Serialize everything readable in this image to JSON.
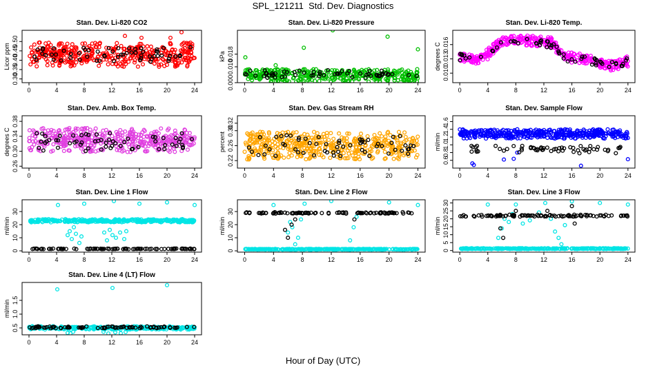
{
  "figure": {
    "title": "SPL_121211  Std. Dev. Diagnostics",
    "xlabel": "Hour of Day (UTC)"
  },
  "chart_data": [
    {
      "type": "scatter",
      "title": "Stan. Dev. Li-820 CO2",
      "ylabel": "Licor ppm",
      "xlim": [
        -1,
        25
      ],
      "ylim": [
        0.28,
        0.56
      ],
      "xticks": [
        0,
        4,
        8,
        12,
        16,
        20,
        24
      ],
      "yticks": [
        0.3,
        0.35,
        0.4,
        0.45,
        0.5
      ],
      "ytick_labels": [
        "0.30",
        "0.35",
        "0.40",
        "0.45",
        "0.50"
      ],
      "colors": {
        "main": "#ff0000",
        "avg": "#000000"
      },
      "series": [
        {
          "name": "main",
          "kind": "band",
          "n": 430,
          "center": 0.43,
          "spread": 0.065,
          "outliers": [
            [
              16.3,
              0.52
            ],
            [
              20.5,
              0.52
            ],
            [
              22.1,
              0.55
            ],
            [
              13.9,
              0.53
            ]
          ]
        },
        {
          "name": "avg",
          "kind": "band",
          "n": 60,
          "center": 0.43,
          "spread": 0.04
        }
      ]
    },
    {
      "type": "scatter",
      "title": "Stan. Dev. Li-820 Pressure",
      "ylabel": "kPa",
      "xlim": [
        -1,
        25
      ],
      "ylim": [
        0.0,
        0.033
      ],
      "xticks": [
        0,
        4,
        8,
        12,
        16,
        20,
        24
      ],
      "yticks": [
        0.0,
        0.01,
        0.018
      ],
      "ytick_labels": [
        "0.000",
        "0.010",
        "0.018"
      ],
      "colors": {
        "main": "#00c000",
        "avg": "#000000"
      },
      "series": [
        {
          "name": "main",
          "kind": "band",
          "n": 380,
          "center": 0.0045,
          "spread": 0.004,
          "outliers": [
            [
              0.1,
              0.016
            ],
            [
              4.3,
              0.011
            ],
            [
              8.2,
              0.022
            ],
            [
              12.2,
              0.033
            ],
            [
              19.8,
              0.029
            ],
            [
              24.0,
              0.021
            ]
          ]
        },
        {
          "name": "avg",
          "kind": "band",
          "n": 60,
          "center": 0.0055,
          "spread": 0.0025
        }
      ]
    },
    {
      "type": "scatter",
      "title": "Stan. Dev. Li-820 Temp.",
      "ylabel": "degrees C",
      "xlim": [
        -1,
        25
      ],
      "ylim": [
        0.008,
        0.019
      ],
      "xticks": [
        0,
        4,
        8,
        12,
        16,
        20,
        24
      ],
      "yticks": [
        0.01,
        0.013,
        0.016
      ],
      "ytick_labels": [
        "0.010",
        "0.013",
        "0.016"
      ],
      "colors": {
        "main": "#ff00ff",
        "avg": "#000000"
      },
      "series": [
        {
          "name": "main",
          "kind": "profile",
          "n": 420,
          "spread": 0.0011,
          "profile": [
            [
              0,
              0.0135
            ],
            [
              3,
              0.0128
            ],
            [
              6,
              0.0165
            ],
            [
              9,
              0.017
            ],
            [
              13,
              0.0165
            ],
            [
              15,
              0.0135
            ],
            [
              18,
              0.0128
            ],
            [
              22,
              0.0115
            ],
            [
              24,
              0.0125
            ]
          ]
        },
        {
          "name": "avg",
          "kind": "profile",
          "n": 60,
          "spread": 0.0008,
          "profile": [
            [
              0,
              0.0135
            ],
            [
              3,
              0.013
            ],
            [
              6,
              0.016
            ],
            [
              9,
              0.0165
            ],
            [
              13,
              0.016
            ],
            [
              15,
              0.0133
            ],
            [
              18,
              0.0127
            ],
            [
              22,
              0.0118
            ],
            [
              24,
              0.0125
            ]
          ]
        }
      ]
    },
    {
      "type": "scatter",
      "title": "Stan. Dev. Amb. Box Temp.",
      "ylabel": "degrees C",
      "xlim": [
        -1,
        25
      ],
      "ylim": [
        0.255,
        0.395
      ],
      "xticks": [
        0,
        4,
        8,
        12,
        16,
        20,
        24
      ],
      "yticks": [
        0.26,
        0.3,
        0.34,
        0.38
      ],
      "ytick_labels": [
        "0.26",
        "0.30",
        "0.34",
        "0.38"
      ],
      "colors": {
        "main": "#e040e0",
        "avg": "#000000"
      },
      "series": [
        {
          "name": "main",
          "kind": "band",
          "n": 430,
          "center": 0.33,
          "spread": 0.032
        },
        {
          "name": "avg",
          "kind": "band",
          "n": 60,
          "center": 0.325,
          "spread": 0.025
        }
      ]
    },
    {
      "type": "scatter",
      "title": "Stan. Dev. Gas Stream RH",
      "ylabel": "percent",
      "xlim": [
        -1,
        25
      ],
      "ylim": [
        0.2,
        0.34
      ],
      "xticks": [
        0,
        4,
        8,
        12,
        16,
        20,
        24
      ],
      "yticks": [
        0.22,
        0.26,
        0.3,
        0.32
      ],
      "ytick_labels": [
        "0.22",
        "0.26",
        "0.30",
        "0.32"
      ],
      "colors": {
        "main": "#ffa500",
        "avg": "#000000"
      },
      "series": [
        {
          "name": "main",
          "kind": "band",
          "n": 460,
          "center": 0.26,
          "spread": 0.037
        },
        {
          "name": "avg",
          "kind": "band",
          "n": 60,
          "center": 0.26,
          "spread": 0.028
        }
      ]
    },
    {
      "type": "scatter",
      "title": "Stan. Dev. Sample Flow",
      "ylabel": "ml/min",
      "xlim": [
        -1,
        25
      ],
      "ylim": [
        0.4,
        1.75
      ],
      "xticks": [
        0,
        4,
        8,
        12,
        16,
        20,
        24
      ],
      "yticks": [
        0.6,
        0.8,
        1.0,
        1.2,
        1.4,
        1.6
      ],
      "ytick_labels": [
        "0.6",
        "0.8",
        "1.0",
        "1.2",
        "1.4",
        "1.6"
      ],
      "colors": {
        "main": "#0000ff",
        "avg": "#000000"
      },
      "series": [
        {
          "name": "main",
          "kind": "band",
          "n": 430,
          "center": 1.28,
          "spread": 0.12,
          "outliers": [
            [
              1.8,
              0.52
            ],
            [
              2.0,
              0.48
            ],
            [
              6.3,
              0.62
            ],
            [
              7.7,
              0.64
            ],
            [
              8.2,
              0.8
            ],
            [
              17.3,
              0.46
            ],
            [
              24.0,
              0.63
            ]
          ]
        },
        {
          "name": "avg",
          "kind": "band",
          "n": 60,
          "center": 0.88,
          "spread": 0.1
        }
      ]
    },
    {
      "type": "scatter",
      "title": "Stan. Dev. Line 1 Flow",
      "ylabel": "ml/min",
      "xlim": [
        -1,
        25
      ],
      "ylim": [
        -1,
        39
      ],
      "xticks": [
        0,
        4,
        8,
        12,
        16,
        20,
        24
      ],
      "yticks": [
        0,
        10,
        20,
        30
      ],
      "ytick_labels": [
        "0",
        "10",
        "20",
        "30"
      ],
      "colors": {
        "main": "#00e5e5",
        "avg": "#000000"
      },
      "series": [
        {
          "name": "main",
          "kind": "band",
          "n": 330,
          "center": 23,
          "spread": 1.2,
          "outliers": [
            [
              4.2,
              35
            ],
            [
              8.0,
              36
            ],
            [
              12.3,
              38
            ],
            [
              16.0,
              36
            ],
            [
              20.0,
              37
            ],
            [
              24.0,
              35
            ],
            [
              5.6,
              12
            ],
            [
              5.9,
              15
            ],
            [
              6.2,
              9
            ],
            [
              6.5,
              18
            ],
            [
              6.8,
              13
            ],
            [
              7.3,
              6
            ],
            [
              7.6,
              11
            ],
            [
              10.9,
              14
            ],
            [
              11.3,
              8
            ],
            [
              11.7,
              16
            ],
            [
              12.1,
              12
            ],
            [
              12.6,
              10
            ],
            [
              13.2,
              14
            ],
            [
              13.8,
              9
            ],
            [
              14.1,
              15
            ]
          ]
        },
        {
          "name": "avg",
          "kind": "band",
          "n": 100,
          "center": 1.5,
          "spread": 0.25
        }
      ]
    },
    {
      "type": "scatter",
      "title": "Stan. Dev. Line 2 Flow",
      "ylabel": "ml/min",
      "xlim": [
        -1,
        25
      ],
      "ylim": [
        -1,
        39
      ],
      "xticks": [
        0,
        4,
        8,
        12,
        16,
        20,
        24
      ],
      "yticks": [
        0,
        10,
        20,
        30
      ],
      "ytick_labels": [
        "0",
        "10",
        "20",
        "30"
      ],
      "colors": {
        "main": "#00e5e5",
        "avg": "#000000"
      },
      "series": [
        {
          "name": "main",
          "kind": "band",
          "n": 330,
          "center": 1.2,
          "spread": 0.3,
          "outliers": [
            [
              4.0,
              35
            ],
            [
              6.0,
              14
            ],
            [
              6.3,
              22
            ],
            [
              6.6,
              18
            ],
            [
              7.0,
              5
            ],
            [
              7.4,
              10
            ],
            [
              7.8,
              24
            ],
            [
              8.3,
              36
            ],
            [
              12.0,
              38
            ],
            [
              14.6,
              8
            ],
            [
              15.1,
              18
            ],
            [
              15.5,
              26
            ],
            [
              20.0,
              37
            ],
            [
              24.0,
              35
            ]
          ]
        },
        {
          "name": "avg",
          "kind": "band",
          "n": 100,
          "center": 29,
          "spread": 0.6,
          "outliers": [
            [
              5.6,
              16
            ],
            [
              6.0,
              10
            ],
            [
              6.5,
              20
            ],
            [
              7.0,
              24
            ],
            [
              15.2,
              24
            ]
          ]
        }
      ]
    },
    {
      "type": "scatter",
      "title": "Stan. Dev. Line 3 Flow",
      "ylabel": "ml/min",
      "xlim": [
        -1,
        25
      ],
      "ylim": [
        -1,
        32
      ],
      "xticks": [
        0,
        4,
        8,
        12,
        16,
        20,
        24
      ],
      "yticks": [
        0,
        5,
        10,
        15,
        20,
        25,
        30
      ],
      "ytick_labels": [
        "0",
        "5",
        "10",
        "15",
        "20",
        "25",
        "30"
      ],
      "colors": {
        "main": "#00e5e5",
        "avg": "#000000"
      },
      "series": [
        {
          "name": "main",
          "kind": "band",
          "n": 300,
          "center": 1.2,
          "spread": 0.3,
          "outliers": [
            [
              4.0,
              29
            ],
            [
              5.5,
              8
            ],
            [
              6.0,
              14
            ],
            [
              6.4,
              20
            ],
            [
              7.0,
              18
            ],
            [
              7.5,
              23
            ],
            [
              8.0,
              29
            ],
            [
              9.0,
              17
            ],
            [
              10.0,
              19
            ],
            [
              11.3,
              24
            ],
            [
              12.2,
              30
            ],
            [
              13.0,
              20
            ],
            [
              13.6,
              12
            ],
            [
              14.1,
              8
            ],
            [
              14.5,
              4
            ],
            [
              15.0,
              16
            ],
            [
              16.0,
              31
            ],
            [
              20.0,
              30
            ],
            [
              24.0,
              29
            ]
          ]
        },
        {
          "name": "avg",
          "kind": "band",
          "n": 100,
          "center": 22,
          "spread": 0.6,
          "outliers": [
            [
              5.8,
              14
            ],
            [
              6.2,
              8
            ],
            [
              8.0,
              25
            ],
            [
              12.5,
              25
            ],
            [
              16.0,
              28
            ],
            [
              16.4,
              17
            ]
          ]
        }
      ]
    },
    {
      "type": "scatter",
      "title": "Stan. Dev. Line 4 (LT) Flow",
      "ylabel": "ml/min",
      "xlim": [
        -1,
        25
      ],
      "ylim": [
        0.25,
        2.15
      ],
      "xticks": [
        0,
        4,
        8,
        12,
        16,
        20,
        24
      ],
      "yticks": [
        0.5,
        1.0,
        1.5
      ],
      "ytick_labels": [
        "0.5",
        "1.0",
        "1.5"
      ],
      "colors": {
        "main": "#00e5e5",
        "avg": "#000000"
      },
      "series": [
        {
          "name": "main",
          "kind": "band",
          "n": 340,
          "center": 0.5,
          "spread": 0.06,
          "outliers": [
            [
              4.1,
              1.9
            ],
            [
              12.1,
              1.95
            ],
            [
              20.0,
              2.05
            ],
            [
              5.6,
              0.32
            ],
            [
              6.0,
              0.3
            ],
            [
              6.4,
              0.36
            ],
            [
              10.8,
              0.36
            ],
            [
              11.5,
              0.3
            ],
            [
              12.5,
              0.34
            ],
            [
              13.3,
              0.31
            ],
            [
              14.0,
              0.35
            ]
          ]
        },
        {
          "name": "avg",
          "kind": "band",
          "n": 80,
          "center": 0.52,
          "spread": 0.035
        }
      ]
    }
  ]
}
